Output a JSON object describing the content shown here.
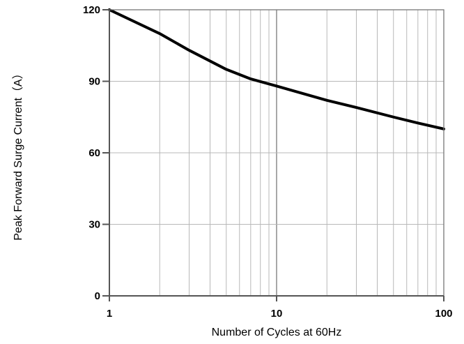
{
  "chart_data": {
    "type": "line",
    "title": "",
    "xlabel": "Number of Cycles at 60Hz",
    "ylabel": "Peak Forward Surge Current（A）",
    "x_scale": "log",
    "xlim": [
      1,
      100
    ],
    "ylim": [
      0,
      120
    ],
    "grid": true,
    "x_ticks": [
      1,
      10,
      100
    ],
    "x_tick_labels": [
      "1",
      "10",
      "100"
    ],
    "y_ticks": [
      0,
      30,
      60,
      90,
      120
    ],
    "y_tick_labels": [
      "0",
      "30",
      "60",
      "90",
      "120"
    ],
    "series": [
      {
        "color": "#000000",
        "x": [
          1,
          2,
          3,
          5,
          7,
          10,
          20,
          30,
          50,
          70,
          100
        ],
        "y": [
          120,
          110,
          103,
          95,
          91,
          88,
          82,
          79,
          75,
          72.5,
          70
        ]
      }
    ]
  }
}
